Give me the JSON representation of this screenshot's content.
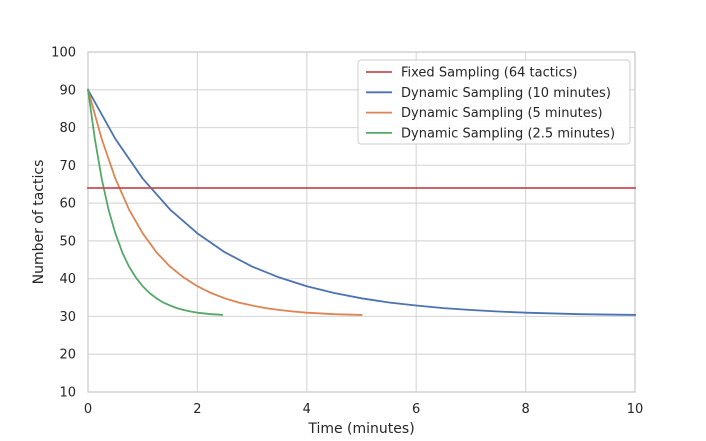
{
  "chart_data": {
    "type": "line",
    "xlabel": "Time (minutes)",
    "ylabel": "Number of tactics",
    "xlim": [
      0,
      10
    ],
    "ylim": [
      10,
      100
    ],
    "xticks": [
      0,
      2,
      4,
      6,
      8,
      10
    ],
    "yticks": [
      10,
      20,
      30,
      40,
      50,
      60,
      70,
      80,
      90,
      100
    ],
    "grid": true,
    "legend_position": "top-right",
    "series": [
      {
        "name": "Fixed Sampling (64 tactics)",
        "color": "#c44e52",
        "x": [
          0,
          10
        ],
        "y": [
          64,
          64
        ]
      },
      {
        "name": "Dynamic Sampling (10 minutes)",
        "color": "#4c72b0",
        "x": [
          0,
          0.5,
          1,
          1.5,
          2,
          2.5,
          3,
          3.5,
          4,
          4.5,
          5,
          5.5,
          6,
          6.5,
          7,
          7.5,
          8,
          8.5,
          9,
          9.5,
          10
        ],
        "y": [
          90,
          77,
          66.5,
          58.3,
          52,
          47,
          43.2,
          40.3,
          38,
          36.2,
          34.8,
          33.7,
          32.9,
          32.2,
          31.7,
          31.3,
          31.0,
          30.8,
          30.6,
          30.5,
          30.4
        ]
      },
      {
        "name": "Dynamic Sampling (5 minutes)",
        "color": "#dd8452",
        "x": [
          0,
          0.25,
          0.5,
          0.75,
          1,
          1.25,
          1.5,
          1.75,
          2,
          2.25,
          2.5,
          2.75,
          3,
          3.25,
          3.5,
          3.75,
          4,
          4.25,
          4.5,
          4.75,
          5
        ],
        "y": [
          90,
          77,
          66.5,
          58.3,
          52,
          47,
          43.2,
          40.3,
          38,
          36.2,
          34.8,
          33.7,
          32.9,
          32.2,
          31.7,
          31.3,
          31.0,
          30.8,
          30.6,
          30.5,
          30.4
        ]
      },
      {
        "name": "Dynamic Sampling (2.5 minutes)",
        "color": "#55a868",
        "x": [
          0,
          0.125,
          0.25,
          0.375,
          0.5,
          0.625,
          0.75,
          0.875,
          1,
          1.125,
          1.25,
          1.375,
          1.5,
          1.625,
          1.75,
          1.875,
          2,
          2.125,
          2.25,
          2.375,
          2.45
        ],
        "y": [
          90,
          77,
          66.5,
          58.3,
          52,
          47,
          43.2,
          40.3,
          38,
          36.2,
          34.8,
          33.7,
          32.9,
          32.2,
          31.7,
          31.3,
          31.0,
          30.8,
          30.6,
          30.5,
          30.4
        ]
      }
    ]
  }
}
